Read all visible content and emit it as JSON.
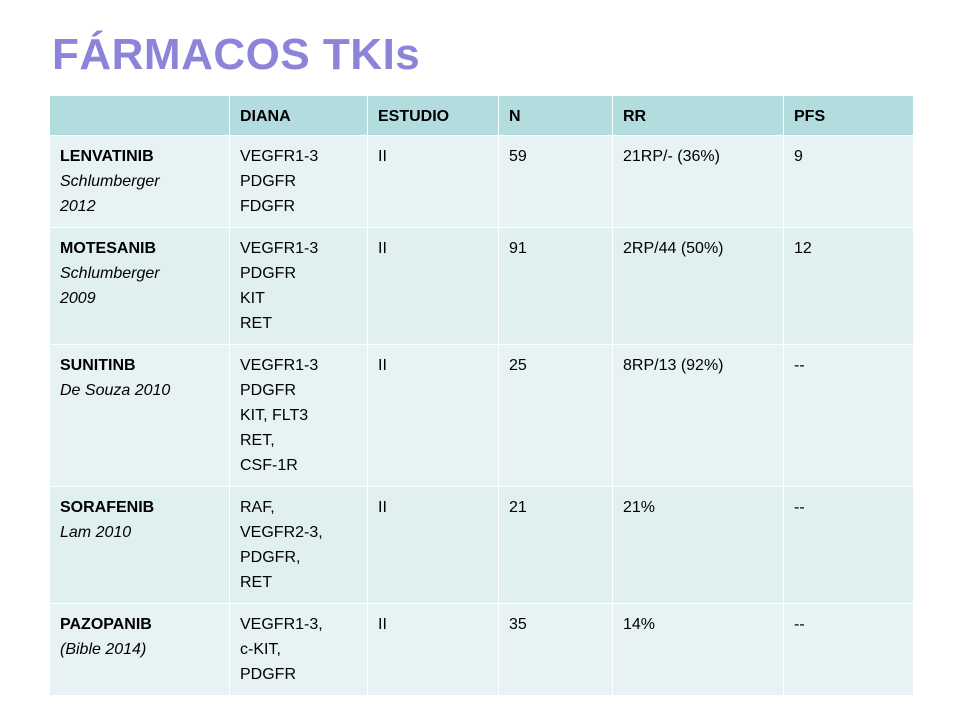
{
  "title": "FÁRMACOS TKIs",
  "table": {
    "headers": [
      "",
      "DIANA",
      "ESTUDIO",
      "N",
      "RR",
      "PFS"
    ],
    "rows": [
      {
        "drug": "LENVATINIB",
        "ref_lines": [
          "Schlumberger",
          "2012"
        ],
        "diana": [
          "VEGFR1-3",
          "PDGFR",
          "FDGFR"
        ],
        "estudio": "II",
        "n": "59",
        "rr": "21RP/- (36%)",
        "pfs": "9"
      },
      {
        "drug": "MOTESANIB",
        "ref_lines": [
          "Schlumberger",
          "2009"
        ],
        "diana": [
          "VEGFR1-3",
          "PDGFR",
          "KIT",
          "RET"
        ],
        "estudio": "II",
        "n": "91",
        "rr": "2RP/44 (50%)",
        "pfs": "12"
      },
      {
        "drug": "SUNITINB",
        "ref_lines": [
          "De Souza 2010"
        ],
        "diana": [
          "VEGFR1-3",
          "PDGFR",
          "KIT, FLT3",
          "RET,",
          "CSF-1R"
        ],
        "estudio": "II",
        "n": "25",
        "rr": "8RP/13 (92%)",
        "pfs": "--"
      },
      {
        "drug": "SORAFENIB",
        "ref_lines": [
          "Lam 2010"
        ],
        "diana": [
          "RAF,",
          "VEGFR2-3,",
          "PDGFR,",
          "RET"
        ],
        "estudio": "II",
        "n": "21",
        "rr": "21%",
        "pfs": "--"
      },
      {
        "drug": "PAZOPANIB",
        "ref_lines": [
          "(Bible 2014)"
        ],
        "diana": [
          "VEGFR1-3,",
          "c-KIT,",
          "PDGFR"
        ],
        "estudio": "II",
        "n": "35",
        "rr": "14%",
        "pfs": "--"
      }
    ]
  }
}
